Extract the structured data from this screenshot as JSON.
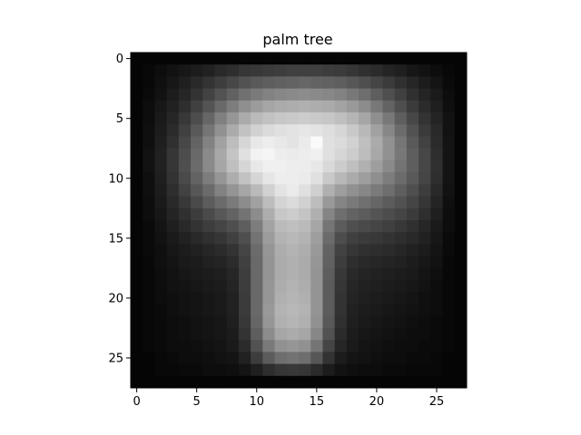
{
  "chart_data": {
    "type": "heatmap",
    "title": "palm tree",
    "colormap": "gray",
    "vmin": 0,
    "vmax": 1,
    "xlim": [
      -0.5,
      27.5
    ],
    "ylim": [
      27.5,
      -0.5
    ],
    "x_ticks": [
      0,
      5,
      10,
      15,
      20,
      25
    ],
    "y_ticks": [
      0,
      5,
      10,
      15,
      20,
      25
    ],
    "x_tick_labels": [
      "0",
      "5",
      "10",
      "15",
      "20",
      "25"
    ],
    "y_tick_labels": [
      "0",
      "5",
      "10",
      "15",
      "20",
      "25"
    ],
    "values": [
      [
        0.02,
        0.02,
        0.02,
        0.02,
        0.02,
        0.02,
        0.02,
        0.02,
        0.02,
        0.02,
        0.02,
        0.02,
        0.02,
        0.02,
        0.02,
        0.02,
        0.02,
        0.02,
        0.02,
        0.02,
        0.02,
        0.02,
        0.02,
        0.02,
        0.02,
        0.02,
        0.02,
        0.02
      ],
      [
        0.02,
        0.03,
        0.05,
        0.07,
        0.09,
        0.11,
        0.13,
        0.16,
        0.18,
        0.21,
        0.22,
        0.23,
        0.24,
        0.25,
        0.25,
        0.25,
        0.24,
        0.23,
        0.21,
        0.19,
        0.17,
        0.14,
        0.12,
        0.09,
        0.07,
        0.05,
        0.03,
        0.02
      ],
      [
        0.02,
        0.03,
        0.06,
        0.09,
        0.12,
        0.16,
        0.2,
        0.24,
        0.28,
        0.32,
        0.35,
        0.37,
        0.38,
        0.39,
        0.4,
        0.39,
        0.38,
        0.37,
        0.34,
        0.31,
        0.27,
        0.23,
        0.19,
        0.15,
        0.11,
        0.08,
        0.04,
        0.02
      ],
      [
        0.02,
        0.04,
        0.07,
        0.11,
        0.15,
        0.2,
        0.26,
        0.32,
        0.38,
        0.44,
        0.48,
        0.51,
        0.53,
        0.54,
        0.55,
        0.54,
        0.53,
        0.51,
        0.47,
        0.43,
        0.37,
        0.31,
        0.25,
        0.19,
        0.14,
        0.1,
        0.05,
        0.02
      ],
      [
        0.02,
        0.05,
        0.09,
        0.13,
        0.18,
        0.25,
        0.33,
        0.41,
        0.49,
        0.56,
        0.61,
        0.65,
        0.67,
        0.68,
        0.69,
        0.68,
        0.67,
        0.64,
        0.6,
        0.55,
        0.47,
        0.39,
        0.31,
        0.23,
        0.17,
        0.12,
        0.06,
        0.02
      ],
      [
        0.02,
        0.05,
        0.1,
        0.15,
        0.22,
        0.3,
        0.4,
        0.5,
        0.59,
        0.67,
        0.73,
        0.76,
        0.78,
        0.79,
        0.8,
        0.79,
        0.78,
        0.75,
        0.71,
        0.65,
        0.56,
        0.47,
        0.37,
        0.28,
        0.2,
        0.14,
        0.07,
        0.02
      ],
      [
        0.02,
        0.06,
        0.11,
        0.17,
        0.25,
        0.35,
        0.46,
        0.57,
        0.67,
        0.76,
        0.82,
        0.86,
        0.88,
        0.89,
        0.9,
        0.89,
        0.87,
        0.84,
        0.79,
        0.72,
        0.63,
        0.53,
        0.42,
        0.32,
        0.23,
        0.16,
        0.07,
        0.02
      ],
      [
        0.02,
        0.06,
        0.12,
        0.19,
        0.28,
        0.39,
        0.51,
        0.63,
        0.74,
        0.84,
        0.91,
        0.93,
        0.91,
        0.89,
        0.92,
        0.98,
        0.88,
        0.86,
        0.82,
        0.75,
        0.67,
        0.57,
        0.46,
        0.35,
        0.26,
        0.17,
        0.08,
        0.02
      ],
      [
        0.02,
        0.07,
        0.13,
        0.21,
        0.3,
        0.41,
        0.54,
        0.66,
        0.77,
        0.88,
        0.95,
        0.96,
        0.93,
        0.92,
        0.93,
        0.94,
        0.88,
        0.84,
        0.8,
        0.74,
        0.66,
        0.57,
        0.47,
        0.37,
        0.28,
        0.18,
        0.08,
        0.02
      ],
      [
        0.02,
        0.07,
        0.13,
        0.21,
        0.31,
        0.42,
        0.54,
        0.65,
        0.75,
        0.84,
        0.91,
        0.94,
        0.94,
        0.93,
        0.93,
        0.91,
        0.85,
        0.8,
        0.75,
        0.69,
        0.62,
        0.54,
        0.45,
        0.37,
        0.28,
        0.19,
        0.08,
        0.02
      ],
      [
        0.02,
        0.06,
        0.12,
        0.2,
        0.29,
        0.39,
        0.49,
        0.59,
        0.68,
        0.76,
        0.84,
        0.9,
        0.93,
        0.93,
        0.92,
        0.88,
        0.79,
        0.72,
        0.67,
        0.62,
        0.56,
        0.49,
        0.42,
        0.35,
        0.27,
        0.18,
        0.08,
        0.02
      ],
      [
        0.02,
        0.06,
        0.11,
        0.18,
        0.26,
        0.34,
        0.42,
        0.51,
        0.58,
        0.65,
        0.73,
        0.82,
        0.89,
        0.92,
        0.88,
        0.81,
        0.69,
        0.62,
        0.57,
        0.53,
        0.48,
        0.43,
        0.37,
        0.31,
        0.24,
        0.16,
        0.07,
        0.02
      ],
      [
        0.02,
        0.05,
        0.1,
        0.16,
        0.22,
        0.29,
        0.36,
        0.42,
        0.48,
        0.55,
        0.63,
        0.74,
        0.83,
        0.86,
        0.82,
        0.74,
        0.6,
        0.52,
        0.48,
        0.44,
        0.4,
        0.36,
        0.32,
        0.27,
        0.21,
        0.14,
        0.06,
        0.02
      ],
      [
        0.02,
        0.05,
        0.09,
        0.14,
        0.19,
        0.24,
        0.29,
        0.34,
        0.39,
        0.45,
        0.55,
        0.68,
        0.78,
        0.8,
        0.77,
        0.69,
        0.52,
        0.43,
        0.39,
        0.36,
        0.33,
        0.3,
        0.27,
        0.23,
        0.18,
        0.12,
        0.05,
        0.02
      ],
      [
        0.02,
        0.04,
        0.08,
        0.12,
        0.16,
        0.2,
        0.24,
        0.27,
        0.31,
        0.37,
        0.49,
        0.64,
        0.73,
        0.75,
        0.73,
        0.65,
        0.46,
        0.36,
        0.31,
        0.29,
        0.27,
        0.25,
        0.22,
        0.19,
        0.15,
        0.1,
        0.05,
        0.02
      ],
      [
        0.02,
        0.04,
        0.07,
        0.1,
        0.13,
        0.16,
        0.19,
        0.21,
        0.25,
        0.31,
        0.45,
        0.61,
        0.7,
        0.72,
        0.7,
        0.62,
        0.42,
        0.3,
        0.25,
        0.23,
        0.22,
        0.2,
        0.18,
        0.16,
        0.13,
        0.09,
        0.04,
        0.02
      ],
      [
        0.02,
        0.04,
        0.06,
        0.09,
        0.11,
        0.13,
        0.15,
        0.17,
        0.2,
        0.27,
        0.42,
        0.59,
        0.68,
        0.7,
        0.68,
        0.6,
        0.39,
        0.26,
        0.21,
        0.19,
        0.18,
        0.17,
        0.15,
        0.13,
        0.11,
        0.08,
        0.04,
        0.02
      ],
      [
        0.02,
        0.03,
        0.06,
        0.08,
        0.1,
        0.11,
        0.13,
        0.14,
        0.17,
        0.25,
        0.41,
        0.58,
        0.67,
        0.69,
        0.67,
        0.59,
        0.38,
        0.24,
        0.18,
        0.16,
        0.15,
        0.14,
        0.13,
        0.11,
        0.09,
        0.07,
        0.03,
        0.02
      ],
      [
        0.02,
        0.03,
        0.05,
        0.07,
        0.09,
        0.1,
        0.11,
        0.12,
        0.15,
        0.24,
        0.41,
        0.58,
        0.67,
        0.69,
        0.67,
        0.58,
        0.37,
        0.22,
        0.16,
        0.14,
        0.13,
        0.12,
        0.11,
        0.1,
        0.08,
        0.06,
        0.03,
        0.02
      ],
      [
        0.02,
        0.03,
        0.05,
        0.07,
        0.08,
        0.09,
        0.1,
        0.11,
        0.14,
        0.24,
        0.41,
        0.59,
        0.68,
        0.7,
        0.68,
        0.58,
        0.36,
        0.21,
        0.15,
        0.13,
        0.12,
        0.11,
        0.1,
        0.09,
        0.07,
        0.05,
        0.03,
        0.02
      ],
      [
        0.02,
        0.03,
        0.05,
        0.06,
        0.07,
        0.08,
        0.09,
        0.1,
        0.13,
        0.23,
        0.41,
        0.59,
        0.69,
        0.71,
        0.69,
        0.58,
        0.36,
        0.2,
        0.14,
        0.12,
        0.11,
        0.1,
        0.09,
        0.08,
        0.06,
        0.05,
        0.03,
        0.02
      ],
      [
        0.02,
        0.03,
        0.04,
        0.06,
        0.07,
        0.08,
        0.09,
        0.1,
        0.13,
        0.23,
        0.41,
        0.6,
        0.7,
        0.72,
        0.7,
        0.58,
        0.36,
        0.2,
        0.13,
        0.11,
        0.1,
        0.09,
        0.08,
        0.07,
        0.06,
        0.05,
        0.03,
        0.02
      ],
      [
        0.02,
        0.03,
        0.04,
        0.05,
        0.06,
        0.07,
        0.08,
        0.09,
        0.12,
        0.22,
        0.4,
        0.59,
        0.69,
        0.71,
        0.69,
        0.57,
        0.35,
        0.19,
        0.12,
        0.1,
        0.09,
        0.08,
        0.07,
        0.06,
        0.05,
        0.04,
        0.03,
        0.02
      ],
      [
        0.02,
        0.03,
        0.04,
        0.05,
        0.06,
        0.07,
        0.08,
        0.09,
        0.11,
        0.2,
        0.37,
        0.55,
        0.65,
        0.67,
        0.65,
        0.53,
        0.32,
        0.17,
        0.11,
        0.09,
        0.08,
        0.07,
        0.06,
        0.05,
        0.05,
        0.04,
        0.03,
        0.02
      ],
      [
        0.02,
        0.03,
        0.04,
        0.05,
        0.05,
        0.06,
        0.07,
        0.08,
        0.1,
        0.17,
        0.32,
        0.48,
        0.57,
        0.59,
        0.57,
        0.46,
        0.27,
        0.15,
        0.1,
        0.08,
        0.07,
        0.06,
        0.05,
        0.05,
        0.04,
        0.04,
        0.03,
        0.02
      ],
      [
        0.02,
        0.02,
        0.03,
        0.04,
        0.05,
        0.05,
        0.06,
        0.07,
        0.08,
        0.13,
        0.24,
        0.36,
        0.43,
        0.45,
        0.43,
        0.34,
        0.2,
        0.11,
        0.08,
        0.07,
        0.06,
        0.05,
        0.05,
        0.04,
        0.04,
        0.03,
        0.02,
        0.02
      ],
      [
        0.02,
        0.02,
        0.03,
        0.03,
        0.04,
        0.04,
        0.05,
        0.05,
        0.06,
        0.08,
        0.12,
        0.18,
        0.21,
        0.22,
        0.21,
        0.17,
        0.11,
        0.07,
        0.06,
        0.05,
        0.05,
        0.04,
        0.04,
        0.03,
        0.03,
        0.03,
        0.02,
        0.02
      ],
      [
        0.02,
        0.02,
        0.02,
        0.02,
        0.02,
        0.02,
        0.02,
        0.02,
        0.02,
        0.02,
        0.02,
        0.02,
        0.02,
        0.02,
        0.02,
        0.02,
        0.02,
        0.02,
        0.02,
        0.02,
        0.02,
        0.02,
        0.02,
        0.02,
        0.02,
        0.02,
        0.02,
        0.02
      ]
    ]
  }
}
